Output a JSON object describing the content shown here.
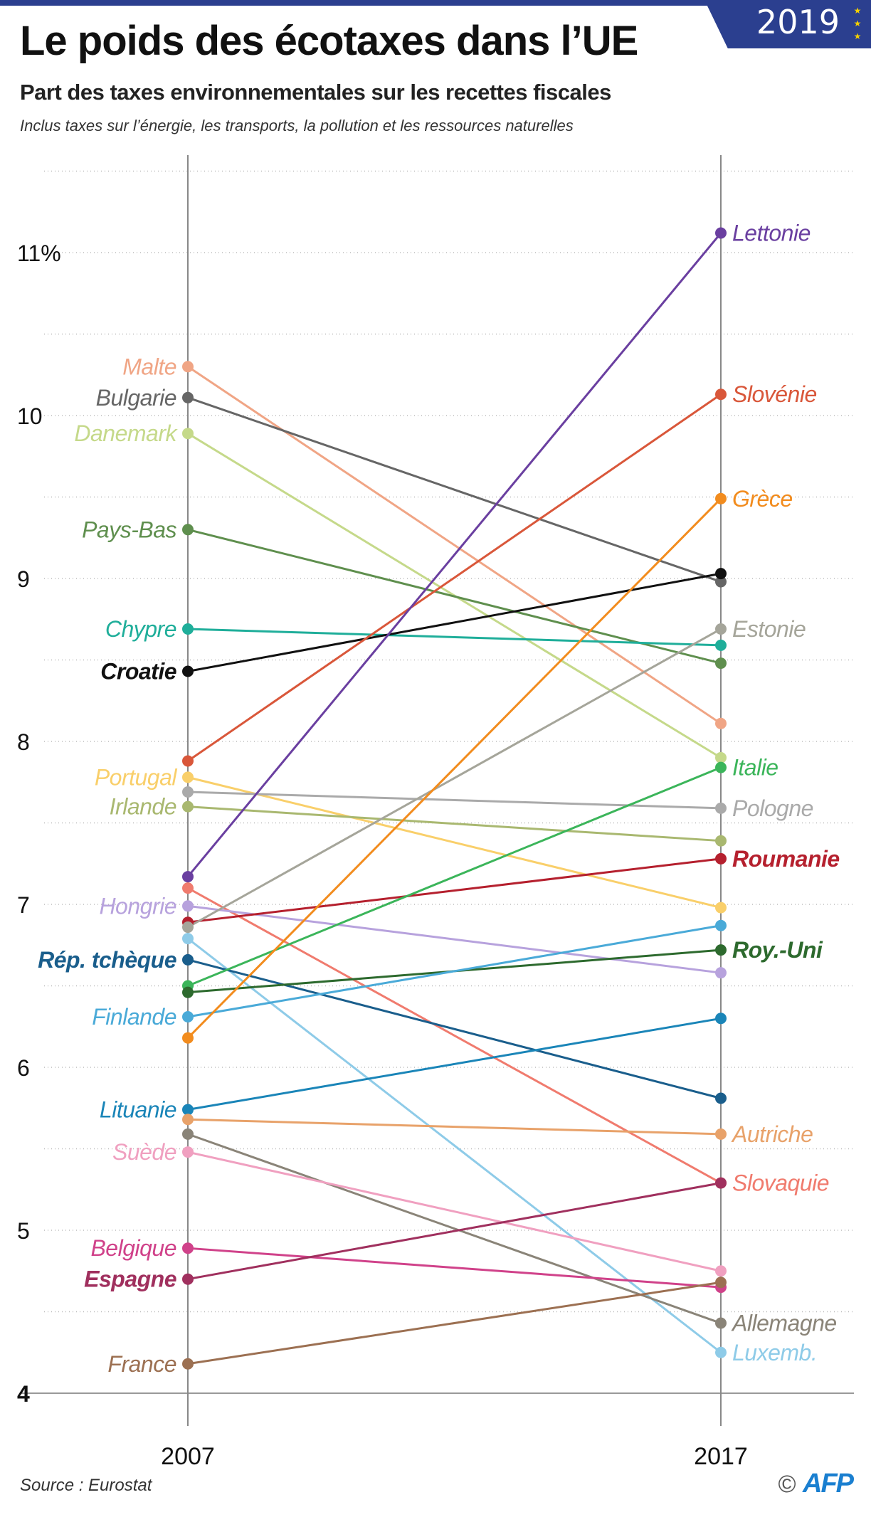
{
  "header": {
    "title": "Le poids des écotaxes dans l’UE",
    "subtitle": "Part des taxes environnementales sur les recettes fiscales",
    "note": "Inclus taxes sur l’énergie, les transports, la pollution et les ressources naturelles",
    "badge_year": "2019"
  },
  "footer": {
    "source": "Source : Eurostat",
    "copyright": "©",
    "logo": "AFP"
  },
  "colors": {
    "brand": "#2b3f8f",
    "afp": "#1a7fd0"
  },
  "chart_data": {
    "type": "line",
    "title": "Le poids des écotaxes dans l’UE",
    "xlabel": "",
    "ylabel": "",
    "x": [
      "2007",
      "2017"
    ],
    "ylim": [
      4,
      11.5
    ],
    "yticks": [
      "4",
      "5",
      "6",
      "7",
      "8",
      "9",
      "10",
      "11%"
    ],
    "ytick_values": [
      4,
      5,
      6,
      7,
      8,
      9,
      10,
      11
    ],
    "grid": true,
    "series": [
      {
        "name": "Malte",
        "values": [
          10.3,
          8.11
        ],
        "color": "#f0a585",
        "label_at": "2007"
      },
      {
        "name": "Bulgarie",
        "values": [
          10.11,
          8.98
        ],
        "color": "#666666",
        "label_at": "2007"
      },
      {
        "name": "Danemark",
        "values": [
          9.89,
          7.9
        ],
        "color": "#c5d98a",
        "label_at": "2007"
      },
      {
        "name": "Pays-Bas",
        "values": [
          9.3,
          8.48
        ],
        "color": "#5f8f4e",
        "label_at": "2007"
      },
      {
        "name": "Chypre",
        "values": [
          8.69,
          8.59
        ],
        "color": "#1fae9a",
        "label_at": "2007"
      },
      {
        "name": "Croatie",
        "values": [
          8.43,
          9.03
        ],
        "color": "#111111",
        "label_at": "2007"
      },
      {
        "name": "Slovénie",
        "values": [
          7.88,
          10.13
        ],
        "color": "#d9573a",
        "label_at": "2017"
      },
      {
        "name": "Portugal",
        "values": [
          7.78,
          6.98
        ],
        "color": "#f9cf6a",
        "label_at": "2007"
      },
      {
        "name": "Pologne",
        "values": [
          7.69,
          7.59
        ],
        "color": "#aaaaaa",
        "label_at": "2017"
      },
      {
        "name": "Irlande",
        "values": [
          7.6,
          7.39
        ],
        "color": "#a9b870",
        "label_at": "2007"
      },
      {
        "name": "Lettonie",
        "values": [
          7.17,
          11.12
        ],
        "color": "#6a3fa0",
        "label_at": "2017"
      },
      {
        "name": "Slovaquie",
        "values": [
          7.1,
          5.29
        ],
        "color": "#f07b6e",
        "label_at": "2017"
      },
      {
        "name": "Hongrie",
        "values": [
          6.99,
          6.58
        ],
        "color": "#b7a2dd",
        "label_at": "2007"
      },
      {
        "name": "Roumanie",
        "values": [
          6.89,
          7.28
        ],
        "color": "#b5202e",
        "label_at": "2017"
      },
      {
        "name": "Estonie",
        "values": [
          6.86,
          8.69
        ],
        "color": "#a5a59a",
        "label_at": "2017"
      },
      {
        "name": "Luxemb.",
        "values": [
          6.79,
          4.25
        ],
        "color": "#8ecbe8",
        "label_at": "2017"
      },
      {
        "name": "Rép. tchèque",
        "values": [
          6.66,
          5.81
        ],
        "color": "#1a5e8c",
        "label_at": "2007"
      },
      {
        "name": "Italie",
        "values": [
          6.5,
          7.84
        ],
        "color": "#3bb55a",
        "label_at": "2017"
      },
      {
        "name": "Roy.-Uni",
        "values": [
          6.46,
          6.72
        ],
        "color": "#2d6a2e",
        "label_at": "2017"
      },
      {
        "name": "Finlande",
        "values": [
          6.31,
          6.87
        ],
        "color": "#4aaad8",
        "label_at": "2007"
      },
      {
        "name": "Grèce",
        "values": [
          6.18,
          9.49
        ],
        "color": "#f28c1e",
        "label_at": "2017"
      },
      {
        "name": "Lituanie",
        "values": [
          5.74,
          6.3
        ],
        "color": "#1a85b8",
        "label_at": "2007"
      },
      {
        "name": "Autriche",
        "values": [
          5.68,
          5.59
        ],
        "color": "#e8a26a",
        "label_at": "2017"
      },
      {
        "name": "Allemagne",
        "values": [
          5.59,
          4.43
        ],
        "color": "#8a8478",
        "label_at": "2017"
      },
      {
        "name": "Suède",
        "values": [
          5.48,
          4.75
        ],
        "color": "#f0a0c0",
        "label_at": "2007"
      },
      {
        "name": "Belgique",
        "values": [
          4.89,
          4.65
        ],
        "color": "#d0428a",
        "label_at": "2007"
      },
      {
        "name": "Espagne",
        "values": [
          4.7,
          5.29
        ],
        "color": "#a0305e",
        "label_at": "2007"
      },
      {
        "name": "France",
        "values": [
          4.18,
          4.68
        ],
        "color": "#9c7052",
        "label_at": "2007"
      }
    ]
  }
}
